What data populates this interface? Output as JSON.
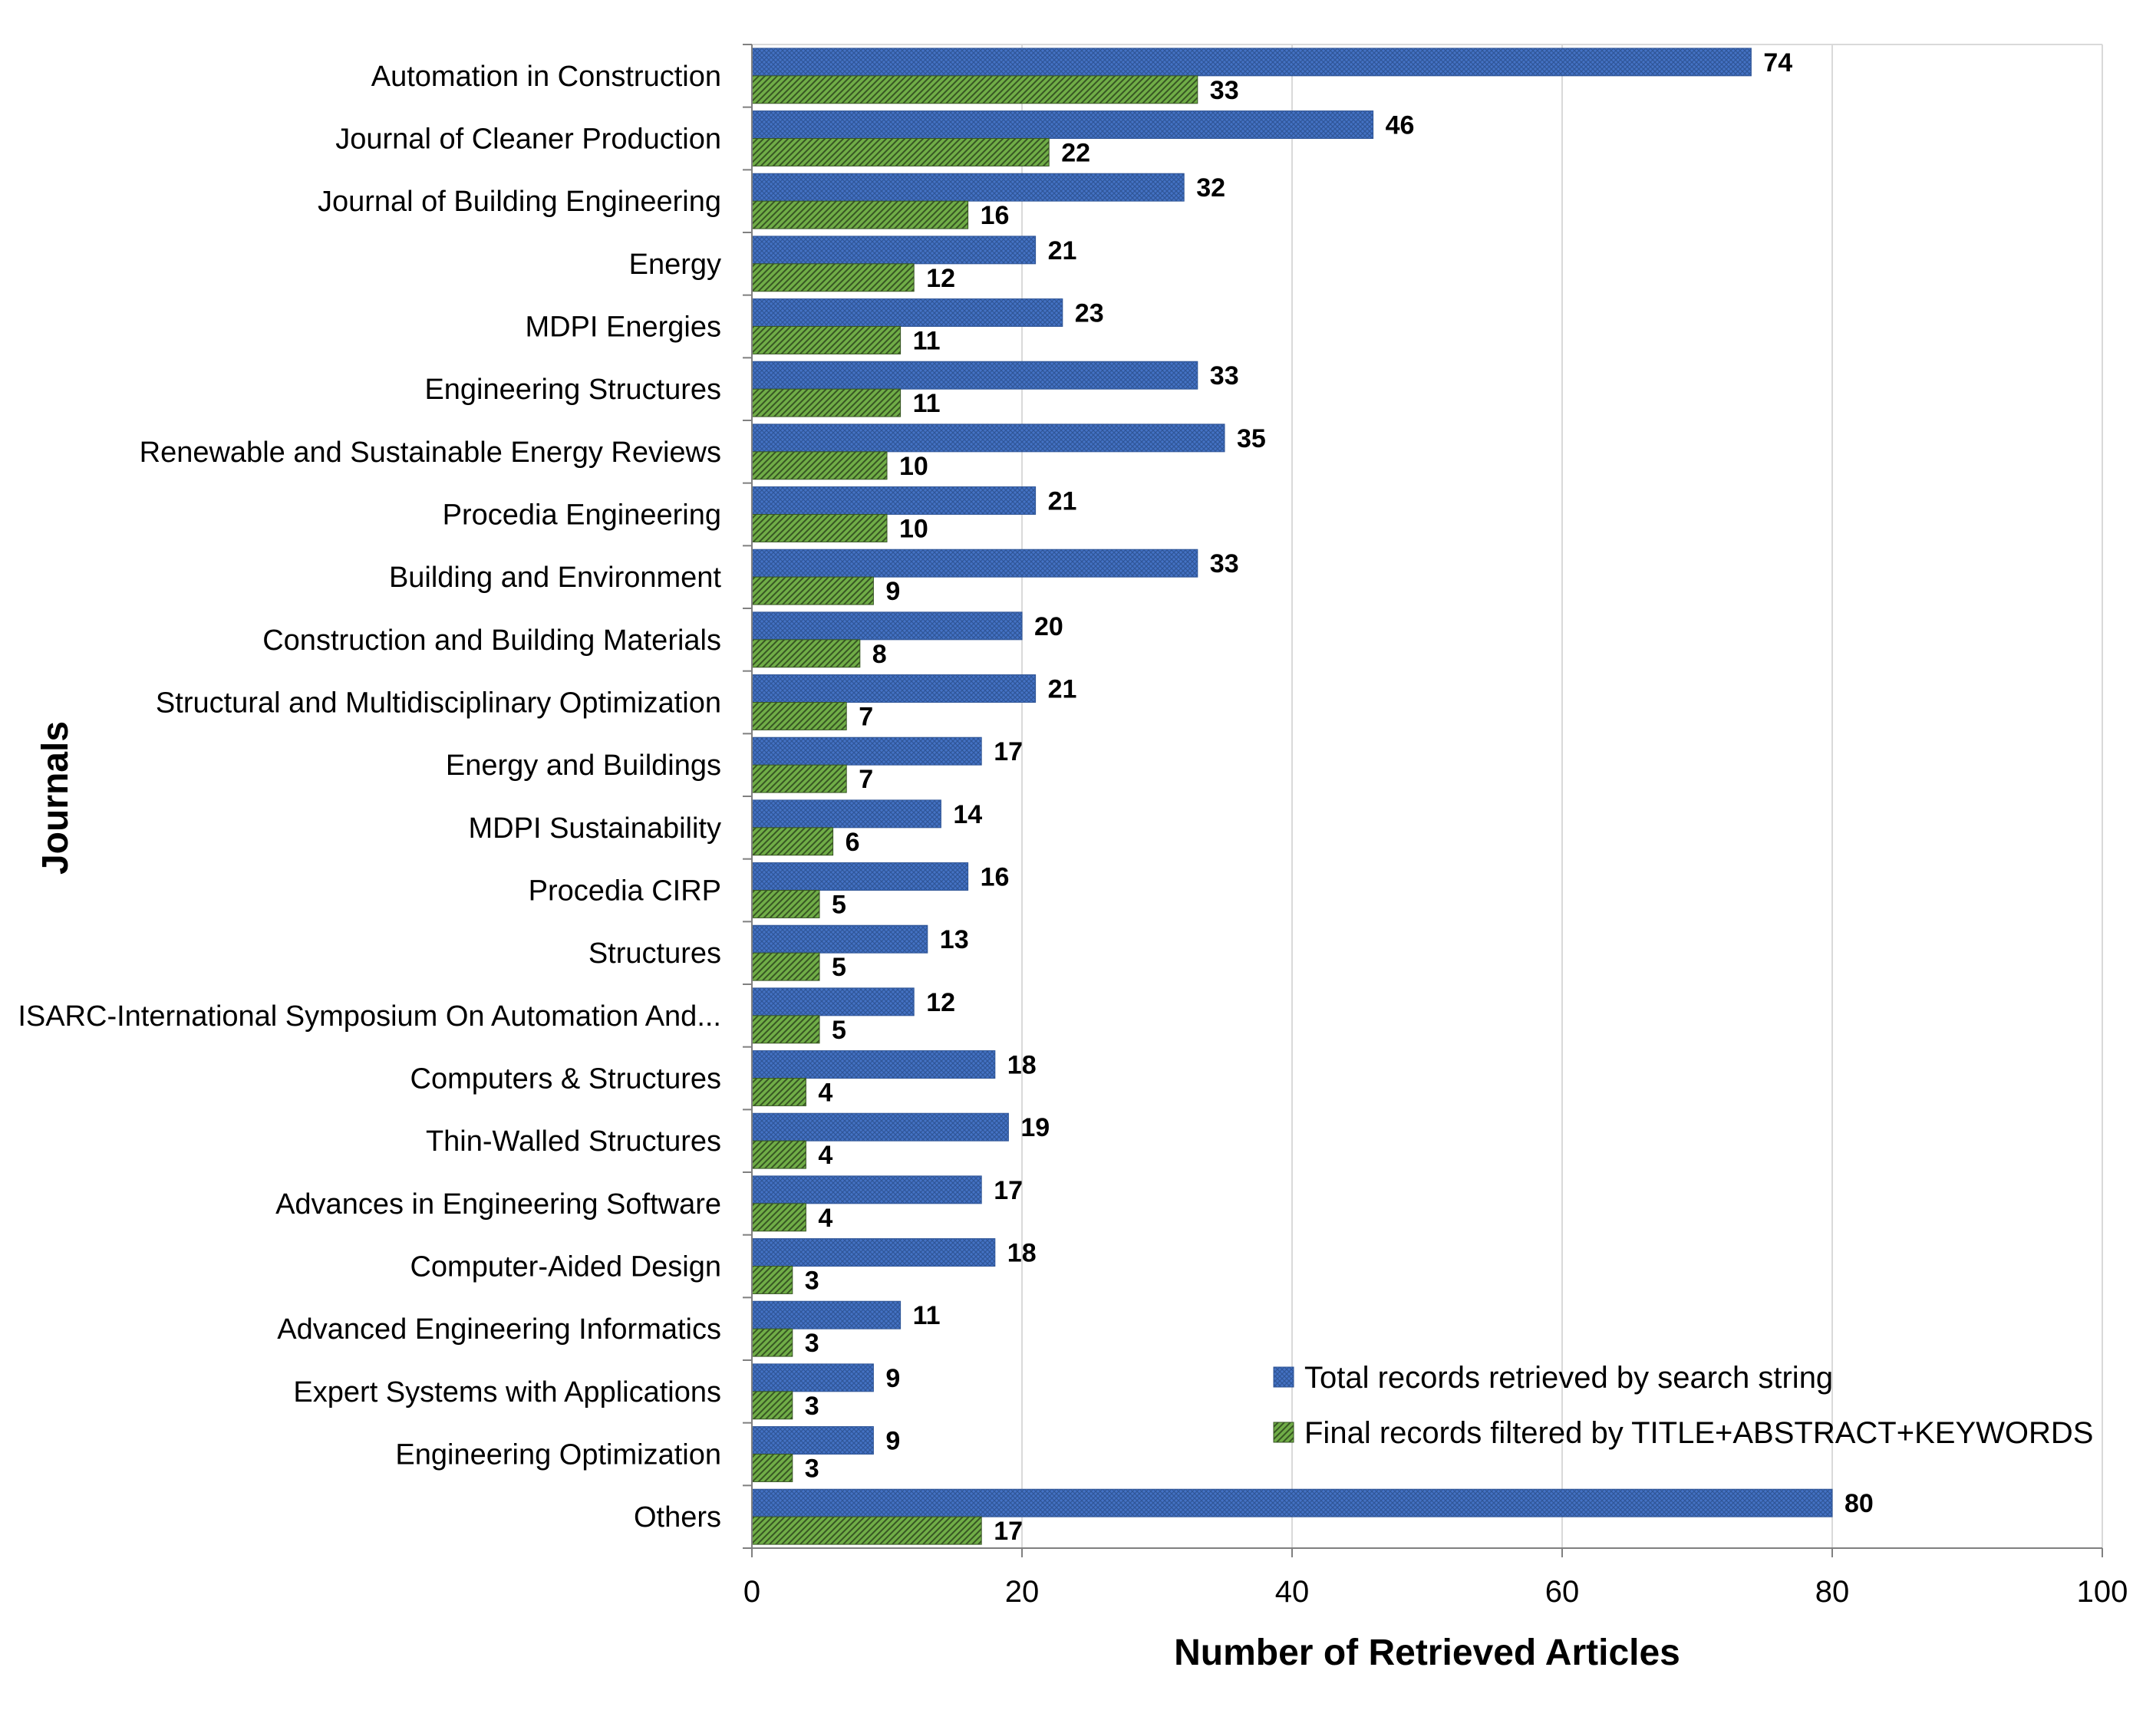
{
  "chart_data": {
    "type": "bar",
    "orientation": "horizontal",
    "title": "",
    "xlabel": "Number of Retrieved Articles",
    "ylabel": "Journals",
    "xlim": [
      0,
      100
    ],
    "xticks": [
      0,
      20,
      40,
      60,
      80,
      100
    ],
    "grid": true,
    "legend_position": "bottom-right",
    "categories": [
      "Automation in Construction",
      "Journal of Cleaner Production",
      "Journal of Building Engineering",
      "Energy",
      "MDPI Energies",
      "Engineering Structures",
      "Renewable and Sustainable Energy Reviews",
      "Procedia Engineering",
      "Building and Environment",
      "Construction and Building Materials",
      "Structural and Multidisciplinary Optimization",
      "Energy and Buildings",
      "MDPI Sustainability",
      "Procedia CIRP",
      "Structures",
      "ISARC-International Symposium On Automation And...",
      "Computers & Structures",
      "Thin-Walled Structures",
      "Advances in Engineering Software",
      "Computer-Aided Design",
      "Advanced Engineering Informatics",
      "Expert Systems with Applications",
      "Engineering Optimization",
      "Others"
    ],
    "series": [
      {
        "name": "Total records retrieved by search string",
        "color": "#4472C4",
        "values": [
          74,
          46,
          32,
          21,
          23,
          33,
          35,
          21,
          33,
          20,
          21,
          17,
          14,
          16,
          13,
          12,
          18,
          19,
          17,
          18,
          11,
          9,
          9,
          80
        ]
      },
      {
        "name": "Final records filtered by TITLE+ABSTRACT+KEYWORDS",
        "color": "#70AD47",
        "values": [
          33,
          22,
          16,
          12,
          11,
          11,
          10,
          10,
          9,
          8,
          7,
          7,
          6,
          5,
          5,
          5,
          4,
          4,
          4,
          3,
          3,
          3,
          3,
          17
        ]
      }
    ]
  }
}
